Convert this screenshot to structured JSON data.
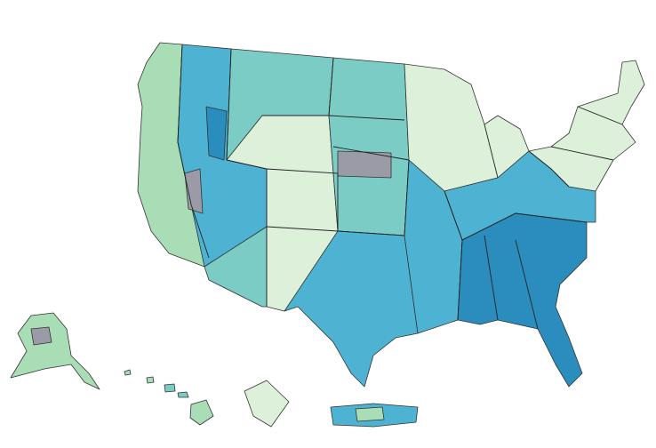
{
  "map": {
    "palette": [
      "#2b8cbe",
      "#4eb3d3",
      "#7bccc4",
      "#a8ddb5",
      "#ddf1da",
      "#9a9ba6"
    ]
  }
}
